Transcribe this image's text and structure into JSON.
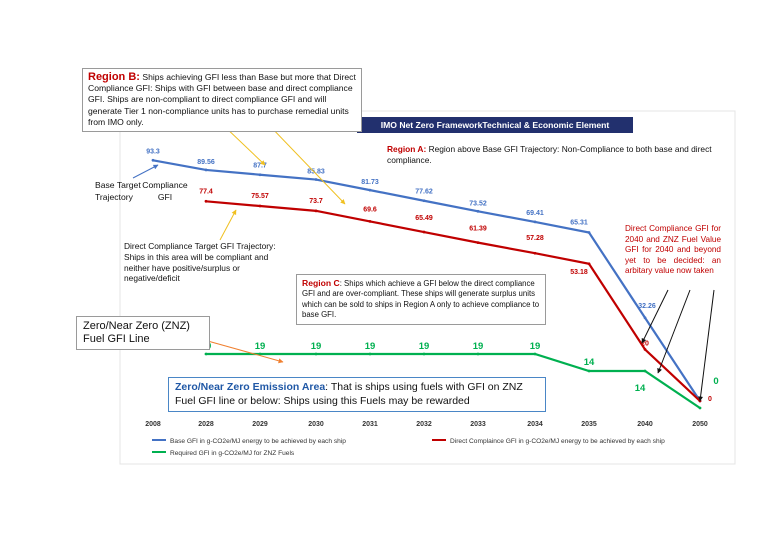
{
  "chart_data": {
    "type": "line",
    "categories": [
      "2008",
      "2028",
      "2029",
      "2030",
      "2031",
      "2032",
      "2033",
      "2034",
      "2035",
      "2040",
      "2050"
    ],
    "series": [
      {
        "name": "Base GFI in g-CO2e/MJ energy to be achieved by each ship",
        "color": "#4472c4",
        "values": [
          93.3,
          89.56,
          87.7,
          85.83,
          81.73,
          77.62,
          73.52,
          69.41,
          65.31,
          32.26,
          0
        ]
      },
      {
        "name": "Direct Complaince GFI in g-CO2e/MJ energy to be achieved by each ship",
        "color": "#c00000",
        "values": [
          null,
          77.4,
          75.57,
          73.7,
          69.6,
          65.49,
          61.39,
          57.28,
          53.18,
          20,
          0
        ]
      },
      {
        "name": "Required GFI in g-CO2e/MJ for ZNZ Fuels",
        "color": "#00b050",
        "values": [
          null,
          19,
          19,
          19,
          19,
          19,
          19,
          19,
          14,
          14,
          0
        ]
      }
    ],
    "data_labels": {
      "base": [
        "93.3",
        "89.56",
        "87.7",
        "85.83",
        "81.73",
        "77.62",
        "73.52",
        "69.41",
        "65.31",
        "32.26"
      ],
      "direct": [
        "77.4",
        "75.57",
        "73.7",
        "69.6",
        "65.49",
        "61.39",
        "57.28",
        "53.18",
        "20",
        "0"
      ],
      "znz": [
        "19",
        "19",
        "19",
        "19",
        "19",
        "19",
        "19",
        "14",
        "14",
        "0"
      ]
    },
    "title": "IMO Net Zero FrameworkTechnical & Economic Element",
    "xlabel": "",
    "ylabel": "",
    "ylim": [
      0,
      100
    ],
    "grid": false,
    "legend_position": "bottom"
  },
  "annotations": {
    "region_b_title": "Region B:",
    "region_b_body": "Ships achieving GFI less than Base but more that Direct Compliance GFI: Ships with GFI between base and direct compliance GFI. Ships are non-compliant to direct compliance GFI and will generate Tier 1 non-compliance units has to purchase remedial units from IMO only.",
    "region_a_title": "Region A:",
    "region_a_body": "Region above Base GFI Trajectory: Non-Compliance to both base and direct compliance.",
    "base_target": "Base Target Trajectory",
    "compliance_gfi": "Compliance GFI",
    "dc_target": "Direct Compliance Target GFI Trajectory: Ships in this area will be compliant and neither have positive/surplus or negative/deficit",
    "region_c_title": "Region C",
    "region_c_body": ": Ships which achieve a GFI below the direct compliance GFI and are over-compliant. These ships will generate surplus units which can be sold to ships in Region A only to achieve compliance to base GFI.",
    "dc_2040": "Direct Compliance GFI for 2040 and ZNZ Fuel Value GFI for 2040 and beyond yet to be decided: an arbitary value now taken",
    "znz_line": "Zero/Near Zero (ZNZ) Fuel GFI Line",
    "znz_area_title": "Zero/Near Zero Emission Area",
    "znz_area_body": ": That is ships using fuels with GFI on ZNZ Fuel GFI line or below: Ships using this Fuels may be rewarded"
  },
  "colors": {
    "base": "#4472c4",
    "direct": "#c00000",
    "znz": "#00b050",
    "annotation_arrow": "#f0c020",
    "title_banner": "#22306e"
  }
}
